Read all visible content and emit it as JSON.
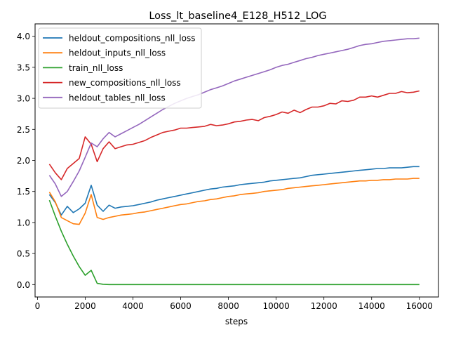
{
  "chart_data": {
    "type": "line",
    "title": "Loss_lt_baseline4_E128_H512_LOG",
    "xlabel": "steps",
    "ylabel": "",
    "xlim": [
      -100,
      16800
    ],
    "ylim": [
      -0.2,
      4.2
    ],
    "xticks": [
      0,
      2000,
      4000,
      6000,
      8000,
      10000,
      12000,
      14000,
      16000
    ],
    "yticks": [
      0.0,
      0.5,
      1.0,
      1.5,
      2.0,
      2.5,
      3.0,
      3.5,
      4.0
    ],
    "grid": false,
    "legend_position": "upper-left",
    "x": [
      500,
      750,
      1000,
      1250,
      1500,
      1750,
      2000,
      2250,
      2500,
      2750,
      3000,
      3250,
      3500,
      3750,
      4000,
      4250,
      4500,
      4750,
      5000,
      5250,
      5500,
      5750,
      6000,
      6250,
      6500,
      6750,
      7000,
      7250,
      7500,
      7750,
      8000,
      8250,
      8500,
      8750,
      9000,
      9250,
      9500,
      9750,
      10000,
      10250,
      10500,
      10750,
      11000,
      11250,
      11500,
      11750,
      12000,
      12250,
      12500,
      12750,
      13000,
      13250,
      13500,
      13750,
      14000,
      14250,
      14500,
      14750,
      15000,
      15250,
      15500,
      15750,
      16000
    ],
    "series": [
      {
        "name": "heldout_compositions_nll_loss",
        "color": "#1f77b4",
        "values": [
          1.45,
          1.32,
          1.12,
          1.26,
          1.16,
          1.22,
          1.31,
          1.6,
          1.28,
          1.18,
          1.28,
          1.23,
          1.25,
          1.26,
          1.27,
          1.29,
          1.31,
          1.33,
          1.36,
          1.38,
          1.4,
          1.42,
          1.44,
          1.46,
          1.48,
          1.5,
          1.52,
          1.54,
          1.55,
          1.57,
          1.58,
          1.59,
          1.61,
          1.62,
          1.63,
          1.64,
          1.65,
          1.67,
          1.68,
          1.69,
          1.7,
          1.71,
          1.72,
          1.74,
          1.76,
          1.77,
          1.78,
          1.79,
          1.8,
          1.81,
          1.82,
          1.83,
          1.84,
          1.85,
          1.86,
          1.87,
          1.87,
          1.88,
          1.88,
          1.88,
          1.89,
          1.9,
          1.9
        ]
      },
      {
        "name": "heldout_inputs_nll_loss",
        "color": "#ff7f0e",
        "values": [
          1.49,
          1.33,
          1.08,
          1.03,
          0.98,
          0.97,
          1.15,
          1.45,
          1.08,
          1.05,
          1.08,
          1.1,
          1.12,
          1.13,
          1.14,
          1.16,
          1.17,
          1.19,
          1.21,
          1.23,
          1.25,
          1.27,
          1.29,
          1.3,
          1.32,
          1.34,
          1.35,
          1.37,
          1.38,
          1.4,
          1.42,
          1.43,
          1.45,
          1.46,
          1.47,
          1.48,
          1.5,
          1.51,
          1.52,
          1.53,
          1.55,
          1.56,
          1.57,
          1.58,
          1.59,
          1.6,
          1.61,
          1.62,
          1.63,
          1.64,
          1.65,
          1.66,
          1.67,
          1.67,
          1.68,
          1.68,
          1.69,
          1.69,
          1.7,
          1.7,
          1.7,
          1.71,
          1.71
        ]
      },
      {
        "name": "train_nll_loss",
        "color": "#2ca02c",
        "values": [
          1.36,
          1.1,
          0.86,
          0.65,
          0.46,
          0.29,
          0.15,
          0.23,
          0.02,
          0.005,
          0.0,
          0.0,
          0.0,
          0.0,
          0.0,
          0.0,
          0.0,
          0.0,
          0.0,
          0.0,
          0.0,
          0.0,
          0.0,
          0.0,
          0.0,
          0.0,
          0.0,
          0.0,
          0.0,
          0.0,
          0.0,
          0.0,
          0.0,
          0.0,
          0.0,
          0.0,
          0.0,
          0.0,
          0.0,
          0.0,
          0.0,
          0.0,
          0.0,
          0.0,
          0.0,
          0.0,
          0.0,
          0.0,
          0.0,
          0.0,
          0.0,
          0.0,
          0.0,
          0.0,
          0.0,
          0.0,
          0.0,
          0.0,
          0.0,
          0.0,
          0.0,
          0.0,
          0.0
        ]
      },
      {
        "name": "new_compositions_nll_loss",
        "color": "#d62728",
        "values": [
          1.94,
          1.8,
          1.69,
          1.87,
          1.95,
          2.03,
          2.38,
          2.26,
          1.98,
          2.19,
          2.3,
          2.19,
          2.22,
          2.25,
          2.26,
          2.29,
          2.32,
          2.37,
          2.41,
          2.45,
          2.47,
          2.49,
          2.52,
          2.52,
          2.53,
          2.54,
          2.55,
          2.58,
          2.56,
          2.57,
          2.59,
          2.62,
          2.63,
          2.65,
          2.66,
          2.64,
          2.69,
          2.71,
          2.74,
          2.78,
          2.76,
          2.81,
          2.77,
          2.82,
          2.86,
          2.86,
          2.88,
          2.92,
          2.91,
          2.96,
          2.95,
          2.97,
          3.02,
          3.02,
          3.04,
          3.02,
          3.05,
          3.08,
          3.08,
          3.11,
          3.09,
          3.1,
          3.12
        ]
      },
      {
        "name": "heldout_tables_nll_loss",
        "color": "#9467bd",
        "values": [
          1.76,
          1.62,
          1.42,
          1.5,
          1.66,
          1.83,
          2.05,
          2.28,
          2.22,
          2.35,
          2.45,
          2.38,
          2.43,
          2.48,
          2.53,
          2.58,
          2.64,
          2.7,
          2.76,
          2.82,
          2.87,
          2.92,
          2.96,
          3.0,
          3.03,
          3.06,
          3.1,
          3.14,
          3.17,
          3.2,
          3.24,
          3.28,
          3.31,
          3.34,
          3.37,
          3.4,
          3.43,
          3.46,
          3.5,
          3.53,
          3.55,
          3.58,
          3.61,
          3.64,
          3.66,
          3.69,
          3.71,
          3.73,
          3.75,
          3.77,
          3.79,
          3.82,
          3.85,
          3.87,
          3.88,
          3.9,
          3.92,
          3.93,
          3.94,
          3.95,
          3.96,
          3.96,
          3.97
        ]
      }
    ]
  }
}
